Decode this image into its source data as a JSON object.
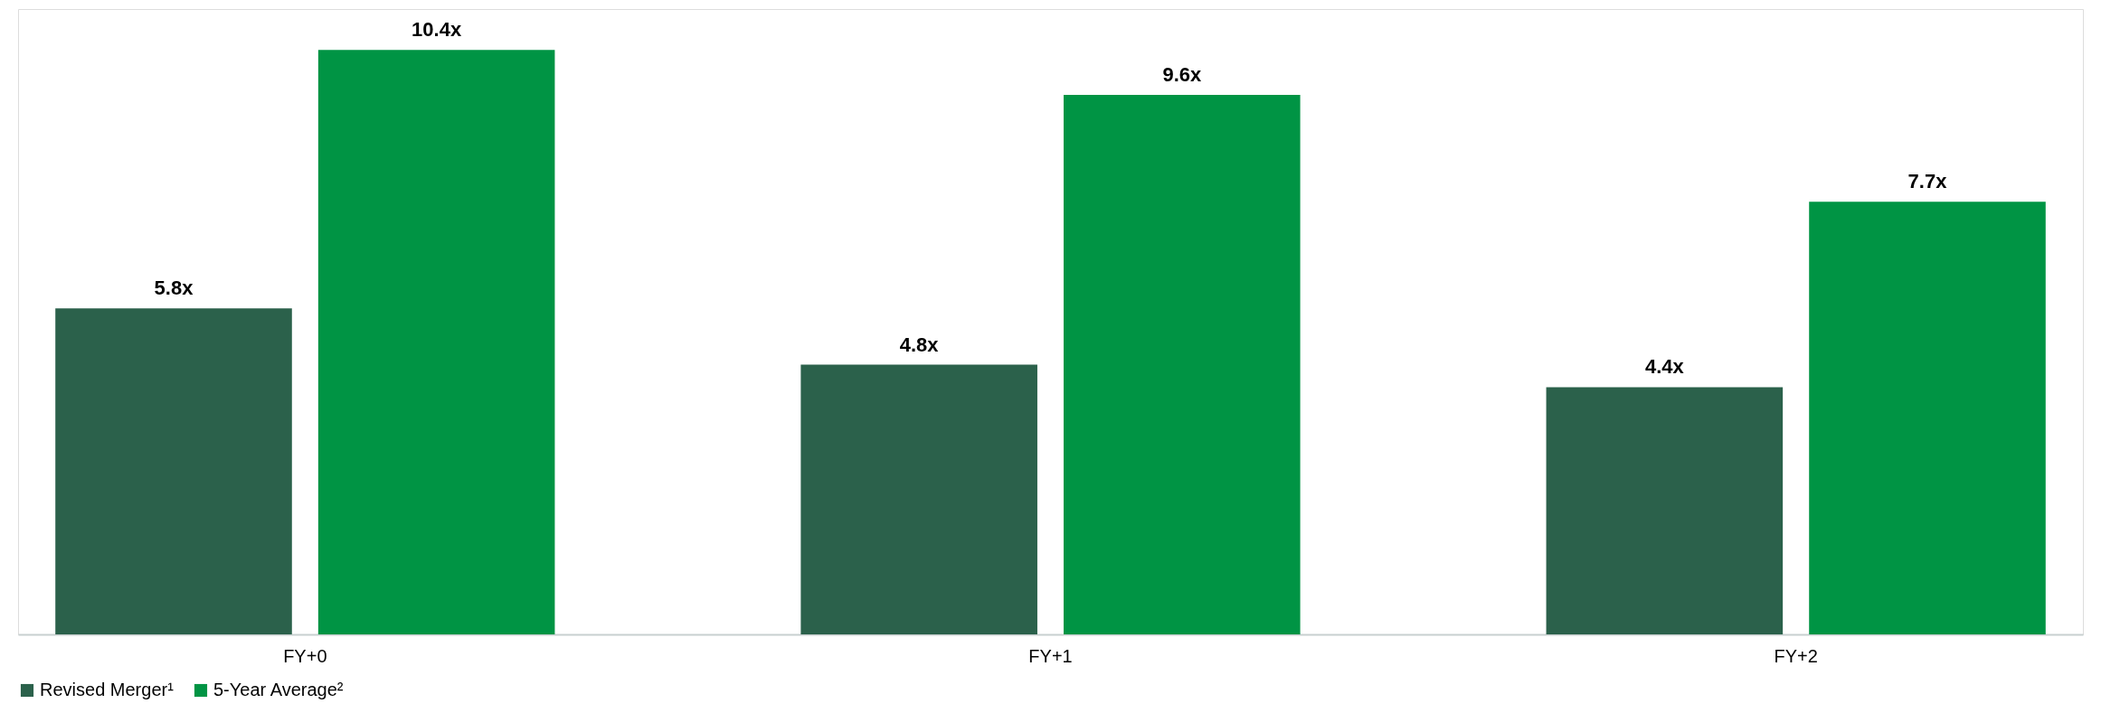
{
  "chart_data": {
    "type": "bar",
    "categories": [
      "FY+0",
      "FY+1",
      "FY+2"
    ],
    "series": [
      {
        "name": "Revised Merger¹",
        "color": "#2b614b",
        "values": [
          5.8,
          4.8,
          4.4
        ],
        "value_labels": [
          "5.8x",
          "4.8x",
          "4.4x"
        ]
      },
      {
        "name": "5-Year Average²",
        "color": "#009444",
        "values": [
          10.4,
          9.6,
          7.7
        ],
        "value_labels": [
          "10.4x",
          "9.6x",
          "7.7x"
        ]
      }
    ],
    "legend": "bottom",
    "grid": false,
    "tick_labels": "x"
  }
}
